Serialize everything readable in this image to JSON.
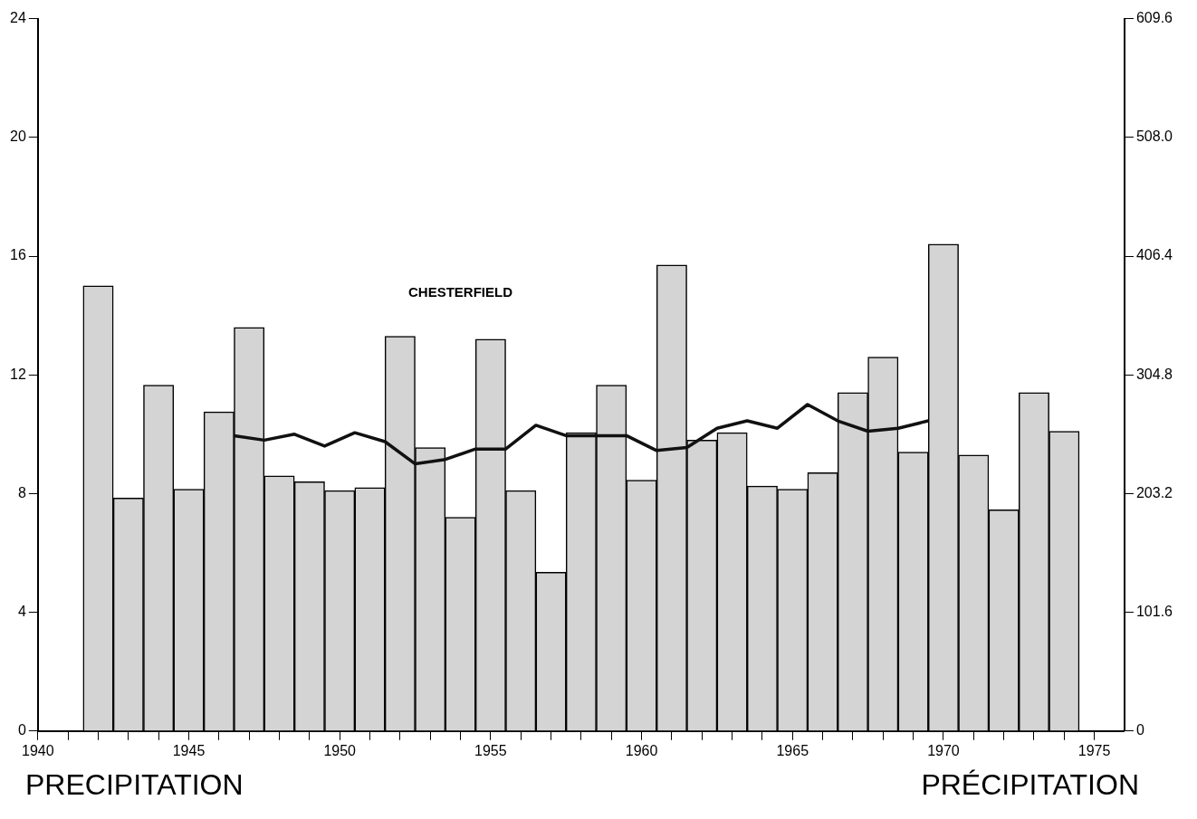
{
  "chart_data": {
    "type": "bar",
    "title": "CHESTERFIELD",
    "annotations": [
      "PRECIPITATION",
      "PRÉCIPITATION"
    ],
    "xlim": [
      1940,
      1976
    ],
    "xticks": [
      1940,
      {
        "value": 1941,
        "label": null
      },
      {
        "value": 1942,
        "label": null
      },
      {
        "value": 1943,
        "label": null
      },
      {
        "value": 1944,
        "label": null
      },
      1945,
      {
        "value": 1946,
        "label": null
      },
      {
        "value": 1947,
        "label": null
      },
      {
        "value": 1948,
        "label": null
      },
      {
        "value": 1949,
        "label": null
      },
      1950,
      {
        "value": 1951,
        "label": null
      },
      {
        "value": 1952,
        "label": null
      },
      {
        "value": 1953,
        "label": null
      },
      {
        "value": 1954,
        "label": null
      },
      1955,
      {
        "value": 1956,
        "label": null
      },
      {
        "value": 1957,
        "label": null
      },
      {
        "value": 1958,
        "label": null
      },
      {
        "value": 1959,
        "label": null
      },
      1960,
      {
        "value": 1961,
        "label": null
      },
      {
        "value": 1962,
        "label": null
      },
      {
        "value": 1963,
        "label": null
      },
      {
        "value": 1964,
        "label": null
      },
      1965,
      {
        "value": 1966,
        "label": null
      },
      {
        "value": 1967,
        "label": null
      },
      {
        "value": 1968,
        "label": null
      },
      {
        "value": 1969,
        "label": null
      },
      1970,
      {
        "value": 1971,
        "label": null
      },
      {
        "value": 1972,
        "label": null
      },
      {
        "value": 1973,
        "label": null
      },
      {
        "value": 1974,
        "label": null
      },
      1975
    ],
    "ylim": [
      0,
      24
    ],
    "yticks": [
      0,
      4,
      8,
      12,
      16,
      20,
      24
    ],
    "y2lim": [
      0,
      609.6
    ],
    "y2ticks": [
      0,
      101.6,
      203.2,
      304.8,
      406.4,
      {
        "value": 508,
        "label": "508.0"
      },
      609.6
    ],
    "grid": false,
    "legend": false,
    "series": [
      {
        "color": "#d4d4d4",
        "x": [
          1942,
          1943,
          1944,
          1945,
          1946,
          1947,
          1948,
          1949,
          1950,
          1951,
          1952,
          1953,
          1954,
          1955,
          1956,
          1957,
          1958,
          1959,
          1960,
          1961,
          1962,
          1963,
          1964,
          1965,
          1966,
          1967,
          1968,
          1969,
          1970,
          1971,
          1972,
          1973,
          1974
        ],
        "values": [
          15.0,
          7.85,
          11.65,
          8.15,
          10.75,
          13.6,
          8.6,
          8.4,
          8.1,
          8.2,
          13.3,
          9.55,
          7.2,
          13.2,
          8.1,
          5.35,
          10.05,
          11.65,
          8.45,
          15.7,
          9.8,
          10.05,
          8.25,
          8.15,
          8.7,
          11.4,
          12.6,
          9.4,
          16.4,
          9.3,
          7.45,
          11.4,
          10.1
        ]
      },
      {
        "type": "line",
        "color": "#111111",
        "marker": "none",
        "line_style": "solid",
        "x": [
          1946.5,
          1947.5,
          1948.5,
          1949.5,
          1950.5,
          1951.5,
          1952.5,
          1953.5,
          1954.5,
          1955.5,
          1956.5,
          1957.5,
          1958.5,
          1959.5,
          1960.5,
          1961.5,
          1962.5,
          1963.5,
          1964.5,
          1965.5,
          1966.5,
          1967.5,
          1968.5,
          1969.5
        ],
        "values": [
          9.95,
          9.8,
          10.0,
          9.6,
          10.05,
          9.75,
          9.0,
          9.15,
          9.5,
          9.5,
          10.3,
          9.95,
          9.95,
          9.95,
          9.45,
          9.55,
          10.2,
          10.45,
          10.2,
          11.0,
          10.45,
          10.1,
          10.2,
          10.45
        ]
      }
    ]
  }
}
